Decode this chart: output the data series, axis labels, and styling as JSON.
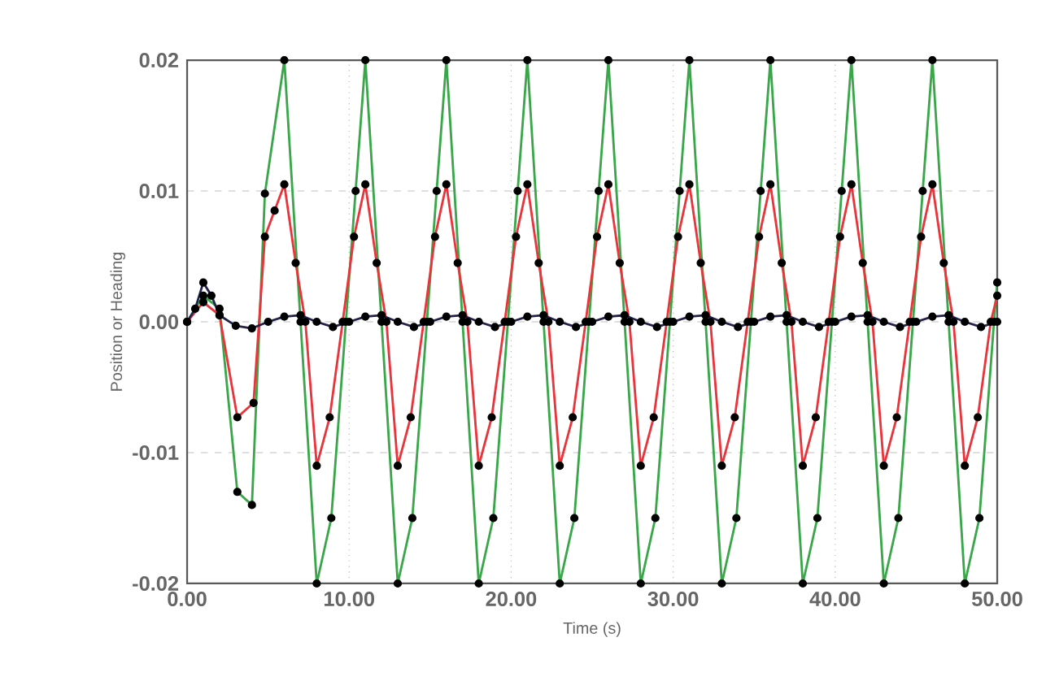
{
  "chart_data": {
    "type": "line",
    "xlabel": "Time (s)",
    "ylabel": "Position or Heading",
    "xlim": [
      0,
      50
    ],
    "ylim": [
      -0.02,
      0.02
    ],
    "xticks": [
      {
        "value": 0,
        "label": "0.00"
      },
      {
        "value": 10,
        "label": "10.00"
      },
      {
        "value": 20,
        "label": "20.00"
      },
      {
        "value": 30,
        "label": "30.00"
      },
      {
        "value": 40,
        "label": "40.00"
      },
      {
        "value": 50,
        "label": "50.00"
      }
    ],
    "yticks": [
      -0.02,
      -0.01,
      {
        "value": 0,
        "label": "0.00"
      },
      0.01,
      0.02
    ],
    "grid": true,
    "marker": "circle",
    "line_style": "solid",
    "series": [
      {
        "color": "#3aa64a",
        "x": [
          0,
          1,
          2,
          3.1,
          4,
          4.8,
          6,
          7,
          8,
          8.9,
          9.8,
          10.4,
          11,
          12,
          13,
          13.9,
          14.8,
          15.4,
          16,
          17,
          18,
          18.9,
          19.8,
          20.4,
          21,
          22,
          23,
          23.9,
          24.8,
          25.4,
          26,
          27,
          28,
          28.9,
          29.8,
          30.4,
          31,
          32,
          33,
          33.9,
          34.8,
          35.4,
          36,
          37,
          38,
          38.9,
          39.8,
          40.4,
          41,
          42,
          43,
          43.9,
          44.8,
          45.4,
          46,
          47,
          48,
          48.9,
          49.8,
          50
        ],
        "values": [
          0,
          0.002,
          0.001,
          -0.013,
          -0.014,
          0.0098,
          0.02,
          0,
          -0.02,
          -0.015,
          0,
          0.01,
          0.02,
          0,
          -0.02,
          -0.015,
          0,
          0.01,
          0.02,
          0,
          -0.02,
          -0.015,
          0,
          0.01,
          0.02,
          0,
          -0.02,
          -0.015,
          0,
          0.01,
          0.02,
          0,
          -0.02,
          -0.015,
          0,
          0.01,
          0.02,
          0,
          -0.02,
          -0.015,
          0,
          0.01,
          0.02,
          0,
          -0.02,
          -0.015,
          0,
          0.01,
          0.02,
          0,
          -0.02,
          -0.015,
          0,
          0.01,
          0.02,
          0,
          -0.02,
          -0.015,
          0,
          0.003
        ]
      },
      {
        "color": "#e8343a",
        "x": [
          0,
          1,
          2,
          3.1,
          4.1,
          4.8,
          5.4,
          6,
          6.7,
          7.3,
          8,
          8.8,
          9.6,
          10.3,
          11,
          11.7,
          12.3,
          13,
          13.8,
          14.6,
          15.3,
          16,
          16.7,
          17.3,
          18,
          18.8,
          19.6,
          20.3,
          21,
          21.7,
          22.3,
          23,
          23.8,
          24.6,
          25.3,
          26,
          26.7,
          27.3,
          28,
          28.8,
          29.6,
          30.3,
          31,
          31.7,
          32.3,
          33,
          33.8,
          34.6,
          35.3,
          36,
          36.7,
          37.3,
          38,
          38.8,
          39.6,
          40.3,
          41,
          41.7,
          42.3,
          43,
          43.8,
          44.6,
          45.3,
          46,
          46.7,
          47.3,
          48,
          48.8,
          49.6,
          50
        ],
        "values": [
          0,
          0.0015,
          0.0005,
          -0.0073,
          -0.0062,
          0.0065,
          0.0085,
          0.0105,
          0.0045,
          0,
          -0.011,
          -0.0073,
          0,
          0.0065,
          0.0105,
          0.0045,
          0,
          -0.011,
          -0.0073,
          0,
          0.0065,
          0.0105,
          0.0045,
          0,
          -0.011,
          -0.0073,
          0,
          0.0065,
          0.0105,
          0.0045,
          0,
          -0.011,
          -0.0073,
          0,
          0.0065,
          0.0105,
          0.0045,
          0,
          -0.011,
          -0.0073,
          0,
          0.0065,
          0.0105,
          0.0045,
          0,
          -0.011,
          -0.0073,
          0,
          0.0065,
          0.0105,
          0.0045,
          0,
          -0.011,
          -0.0073,
          0,
          0.0065,
          0.0105,
          0.0045,
          0,
          -0.011,
          -0.0073,
          0,
          0.0065,
          0.0105,
          0.0045,
          0,
          -0.011,
          -0.0073,
          0,
          0.002
        ]
      },
      {
        "color": "#22224a",
        "x": [
          0,
          0.5,
          1,
          1.5,
          2,
          3,
          4,
          5,
          6,
          7,
          8,
          9,
          10,
          11,
          12,
          13,
          14,
          15,
          16,
          17,
          18,
          19,
          20,
          21,
          22,
          23,
          24,
          25,
          26,
          27,
          28,
          29,
          30,
          31,
          32,
          33,
          34,
          35,
          36,
          37,
          38,
          39,
          40,
          41,
          42,
          43,
          44,
          45,
          46,
          47,
          48,
          49,
          50
        ],
        "values": [
          0,
          0.001,
          0.003,
          0.002,
          0.0005,
          -0.0003,
          -0.0005,
          0,
          0.0004,
          0.0005,
          0,
          -0.0004,
          0,
          0.0004,
          0.0005,
          0,
          -0.0004,
          0,
          0.0004,
          0.0005,
          0,
          -0.0004,
          0,
          0.0004,
          0.0005,
          0,
          -0.0004,
          0,
          0.0004,
          0.0005,
          0,
          -0.0004,
          0,
          0.0004,
          0.0005,
          0,
          -0.0004,
          0,
          0.0004,
          0.0005,
          0,
          -0.0004,
          0,
          0.0004,
          0.0005,
          0,
          -0.0004,
          0,
          0.0004,
          0.0005,
          0,
          -0.0004,
          0
        ]
      }
    ]
  }
}
